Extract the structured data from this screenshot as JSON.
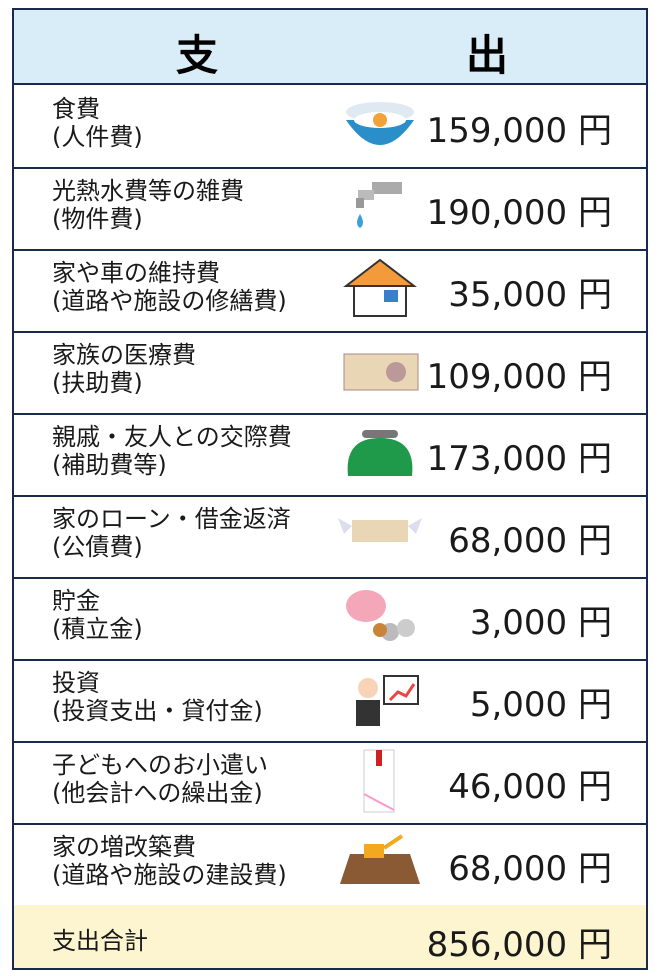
{
  "header": {
    "cells": [
      "支",
      "出"
    ]
  },
  "rows": [
    {
      "label": [
        "食費",
        "(人件費)"
      ],
      "amount": "159,000 円"
    },
    {
      "label": [
        "光熱水費等の雑費",
        "(物件費)"
      ],
      "amount": "190,000 円"
    },
    {
      "label": [
        "家や車の維持費",
        "(道路や施設の修繕費)"
      ],
      "amount": "35,000 円"
    },
    {
      "label": [
        "家族の医療費",
        "(扶助費)"
      ],
      "amount": "109,000 円"
    },
    {
      "label": [
        "親戚・友人との交際費",
        "(補助費等)"
      ],
      "amount": "173,000 円"
    },
    {
      "label": [
        "家のローン・借金返済",
        "(公債費)"
      ],
      "amount": "68,000 円"
    },
    {
      "label": [
        "貯金",
        "(積立金)"
      ],
      "amount": "3,000 円"
    },
    {
      "label": [
        "投資",
        "(投資支出・貸付金)"
      ],
      "amount": "5,000 円"
    },
    {
      "label": [
        "子どもへのお小遣い",
        "(他会計への繰出金)"
      ],
      "amount": "46,000 円"
    },
    {
      "label": [
        "家の増改築費",
        "(道路や施設の建設費)"
      ],
      "amount": "68,000 円"
    }
  ],
  "total": {
    "label": "支出合計",
    "amount": "856,000 円"
  }
}
